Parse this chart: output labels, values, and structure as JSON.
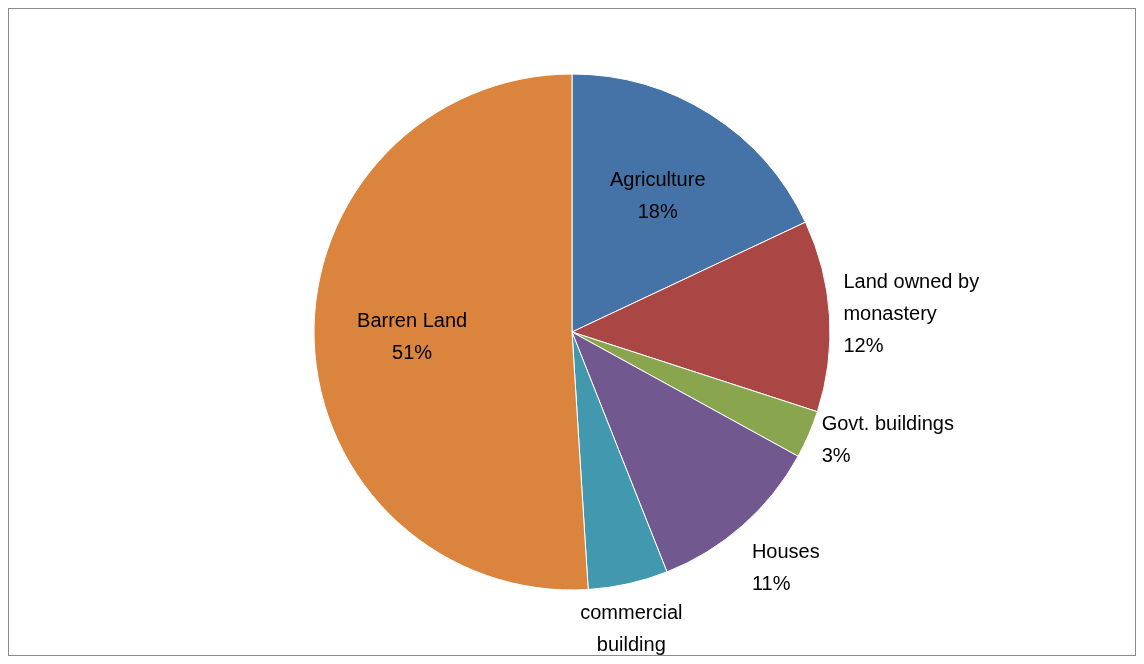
{
  "chart_data": {
    "type": "pie",
    "categories": [
      "Agriculture",
      "Land owned by monastery",
      "Govt. buildings",
      "Houses",
      "commercial building",
      "Barren Land"
    ],
    "values": [
      18,
      12,
      3,
      11,
      5,
      51
    ],
    "colors": [
      "#4573a7",
      "#aa4643",
      "#89a54e",
      "#71588f",
      "#4198af",
      "#db843d"
    ],
    "value_labels": [
      "18%",
      "12%",
      "3%",
      "11%",
      null,
      "51%"
    ],
    "legend": false
  }
}
